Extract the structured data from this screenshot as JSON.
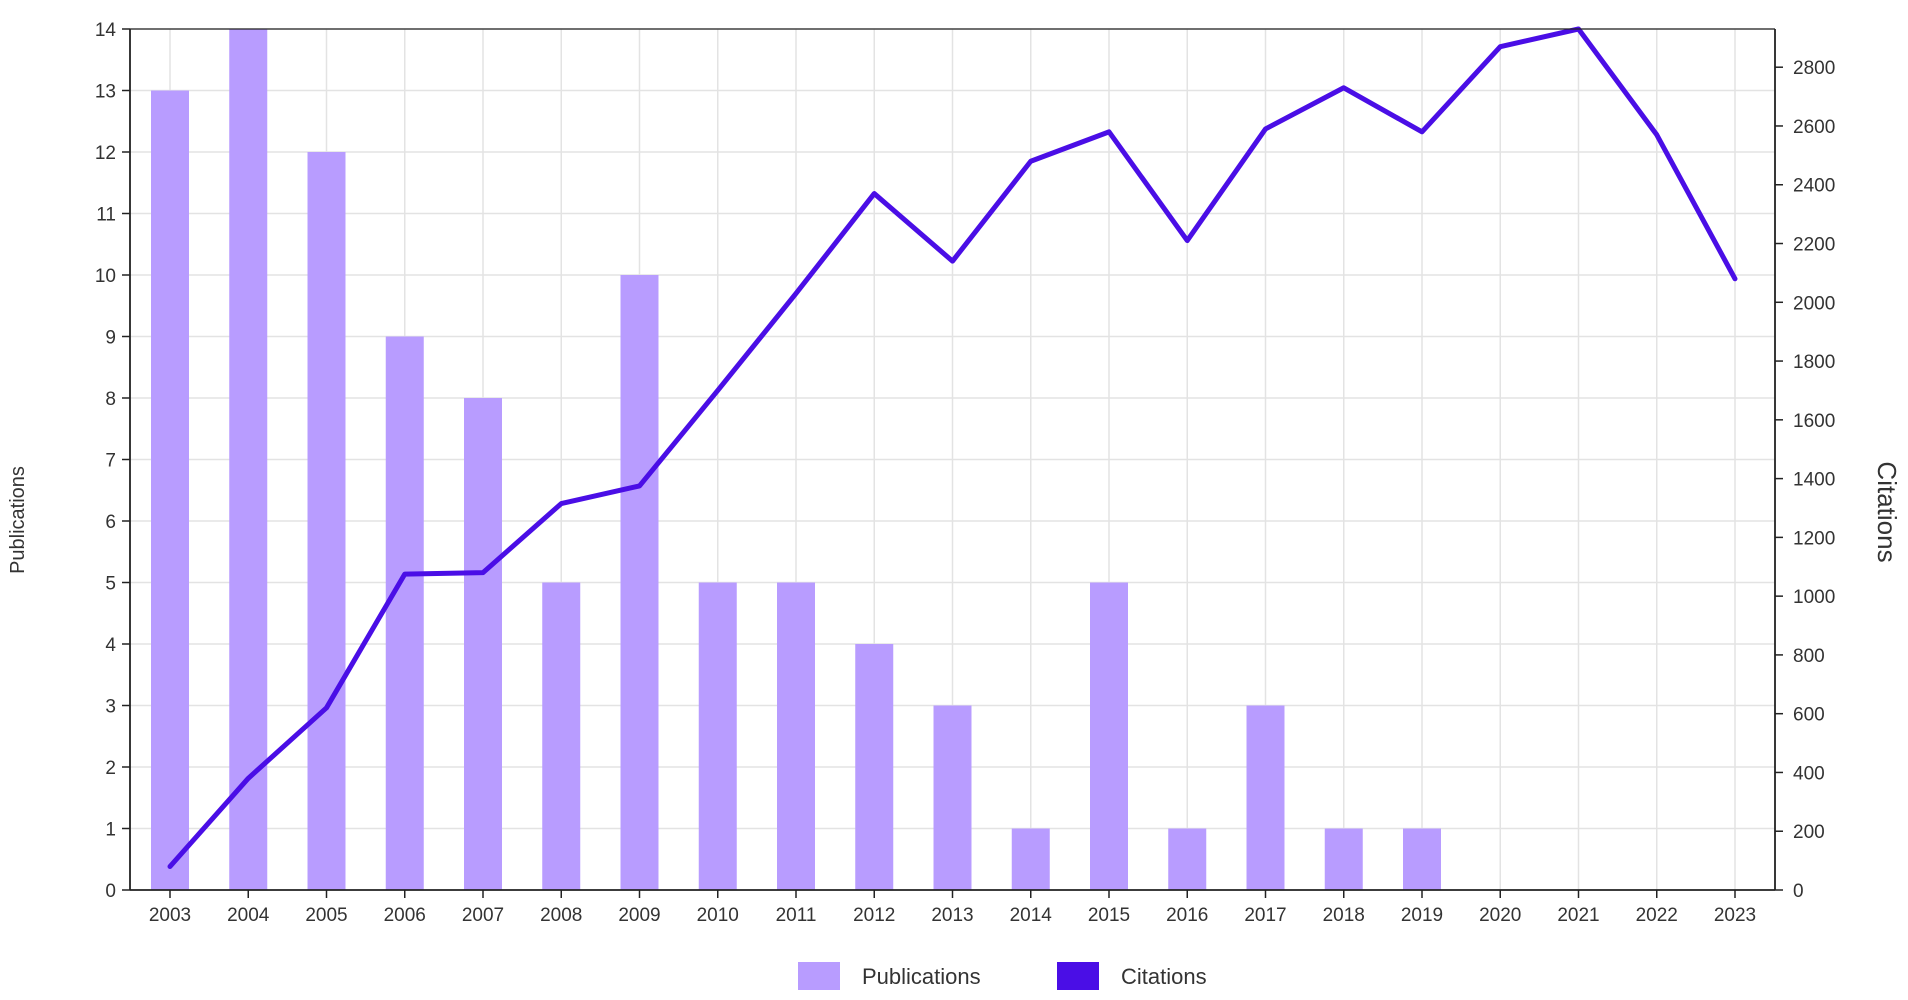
{
  "chart_data": {
    "type": "bar+line",
    "categories": [
      "2003",
      "2004",
      "2005",
      "2006",
      "2007",
      "2008",
      "2009",
      "2010",
      "2011",
      "2012",
      "2013",
      "2014",
      "2015",
      "2016",
      "2017",
      "2018",
      "2019",
      "2020",
      "2021",
      "2022",
      "2023"
    ],
    "series": [
      {
        "name": "Publications",
        "type": "bar",
        "axis": "left",
        "color": "#b89cff",
        "values": [
          13,
          14,
          12,
          9,
          8,
          5,
          10,
          5,
          5,
          4,
          3,
          1,
          5,
          1,
          3,
          1,
          1,
          0,
          0,
          0,
          0
        ]
      },
      {
        "name": "Citations",
        "type": "line",
        "axis": "right",
        "color": "#4a0ee6",
        "values": [
          80,
          380,
          620,
          1075,
          1080,
          1315,
          1375,
          1700,
          2030,
          2370,
          2140,
          2480,
          2580,
          2210,
          2590,
          2730,
          2580,
          2870,
          2930,
          2570,
          2080
        ]
      }
    ],
    "ylabel_left": "Publications",
    "ylabel_right": "Citations",
    "ylim_left": [
      0,
      14
    ],
    "ylim_right": [
      0,
      2930
    ],
    "yticks_left": [
      0,
      1,
      2,
      3,
      4,
      5,
      6,
      7,
      8,
      9,
      10,
      11,
      12,
      13,
      14
    ],
    "yticks_right": [
      0,
      200,
      400,
      600,
      800,
      1000,
      1200,
      1400,
      1600,
      1800,
      2000,
      2200,
      2400,
      2600,
      2800
    ],
    "grid": true,
    "legend_position": "bottom-center",
    "legend": [
      {
        "label": "Publications",
        "color": "#b89cff"
      },
      {
        "label": "Citations",
        "color": "#4a0ee6"
      }
    ]
  }
}
